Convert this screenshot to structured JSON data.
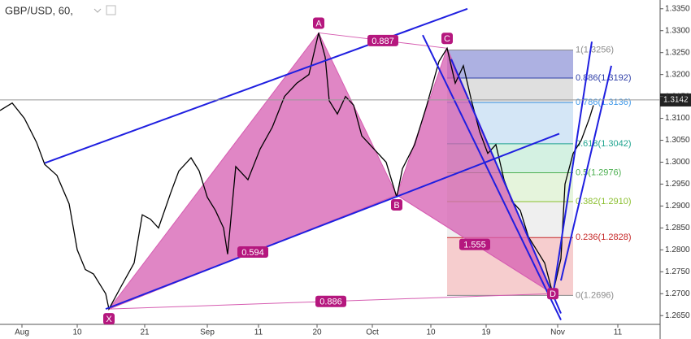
{
  "chart_data": {
    "type": "line",
    "title": "GBP/USD, 60,",
    "xlim": [
      0,
      81.2
    ],
    "ylim": [
      1.263,
      1.337
    ],
    "xticks": [
      {
        "value": 2.7,
        "label": "Aug"
      },
      {
        "value": 9.5,
        "label": "10"
      },
      {
        "value": 17.8,
        "label": "21"
      },
      {
        "value": 25.5,
        "label": "Sep"
      },
      {
        "value": 31.8,
        "label": "11"
      },
      {
        "value": 39,
        "label": "20"
      },
      {
        "value": 45.8,
        "label": "Oct"
      },
      {
        "value": 53,
        "label": "10"
      },
      {
        "value": 59.8,
        "label": "19"
      },
      {
        "value": 68.6,
        "label": "Nov"
      },
      {
        "value": 76,
        "label": "11"
      }
    ],
    "yticks": [
      {
        "value": 1.265,
        "label": "1.2650"
      },
      {
        "value": 1.27,
        "label": "1.2700"
      },
      {
        "value": 1.275,
        "label": "1.2750"
      },
      {
        "value": 1.28,
        "label": "1.2800"
      },
      {
        "value": 1.285,
        "label": "1.2850"
      },
      {
        "value": 1.29,
        "label": "1.2900"
      },
      {
        "value": 1.295,
        "label": "1.2950"
      },
      {
        "value": 1.3,
        "label": "1.3000"
      },
      {
        "value": 1.305,
        "label": "1.3050"
      },
      {
        "value": 1.31,
        "label": "1.3100"
      },
      {
        "value": 1.315,
        "label": "1.3150"
      },
      {
        "value": 1.32,
        "label": "1.3200"
      },
      {
        "value": 1.325,
        "label": "1.3250"
      },
      {
        "value": 1.33,
        "label": "1.3300"
      },
      {
        "value": 1.335,
        "label": "1.3350"
      }
    ],
    "x": [
      0,
      1.5,
      3,
      4.5,
      5.5,
      7,
      8.5,
      9.5,
      10.5,
      11.5,
      13,
      13.4,
      15,
      16.5,
      17.5,
      18.5,
      19.5,
      21,
      22,
      23.5,
      24.5,
      25.5,
      26.5,
      27.5,
      28,
      29,
      30.5,
      32,
      33.5,
      35,
      36.5,
      38,
      39.2,
      40,
      40.5,
      41.5,
      42.5,
      43.5,
      44.5,
      46,
      47.5,
      48.8,
      49.5,
      51,
      52.5,
      54,
      55,
      56,
      57,
      58,
      59,
      60,
      61,
      62,
      63,
      64,
      65,
      66,
      67,
      68,
      69,
      69.5,
      70.5,
      71.5,
      72.5,
      73
    ],
    "values": [
      1.3118,
      1.3135,
      1.31,
      1.3045,
      1.2995,
      1.297,
      1.2905,
      1.28,
      1.2755,
      1.2745,
      1.27,
      1.2665,
      1.272,
      1.277,
      1.288,
      1.287,
      1.285,
      1.293,
      1.298,
      1.301,
      1.298,
      1.292,
      1.289,
      1.285,
      1.279,
      1.299,
      1.296,
      1.303,
      1.308,
      1.315,
      1.318,
      1.32,
      1.3295,
      1.324,
      1.314,
      1.311,
      1.315,
      1.313,
      1.306,
      1.303,
      1.3,
      1.292,
      1.2985,
      1.304,
      1.313,
      1.323,
      1.326,
      1.318,
      1.322,
      1.314,
      1.307,
      1.302,
      1.304,
      1.296,
      1.291,
      1.289,
      1.283,
      1.28,
      1.277,
      1.27,
      1.278,
      1.295,
      1.302,
      1.305,
      1.31,
      1.313
    ],
    "color": "#000000",
    "last": 1.3142,
    "pattern": {
      "color": "#d65db1",
      "label_color": "#b5177e",
      "points": [
        {
          "label": "X",
          "x": 13.4,
          "y": 1.2665
        },
        {
          "label": "A",
          "x": 39.2,
          "y": 1.3295
        },
        {
          "label": "B",
          "x": 48.8,
          "y": 1.2925
        },
        {
          "label": "C",
          "x": 55,
          "y": 1.326
        },
        {
          "label": "D",
          "x": 68,
          "y": 1.27
        }
      ],
      "ratios": [
        {
          "label": "0.887",
          "legs": [
            1,
            3
          ]
        },
        {
          "label": "0.594",
          "legs": [
            0,
            2
          ]
        },
        {
          "label": "0.886",
          "legs": [
            0,
            4
          ]
        },
        {
          "label": "1.555",
          "legs": [
            2,
            4
          ]
        }
      ]
    },
    "fib": {
      "x": [
        55,
        70.5
      ],
      "levels": [
        {
          "value": 1.3256,
          "label": "1(1.3256)",
          "color": "#8c8c8c",
          "fill": "#9fa3dd"
        },
        {
          "value": 1.3192,
          "label": "0.886(1.3192)",
          "color": "#2f3fa8",
          "fill": "#d9d9d9"
        },
        {
          "value": 1.3136,
          "label": "0.786(1.3136)",
          "color": "#3d97e8",
          "fill": "#cde2f4"
        },
        {
          "value": 1.3042,
          "label": "0.618(1.3042)",
          "color": "#1ea48f",
          "fill": "#cdeedd"
        },
        {
          "value": 1.2976,
          "label": "0.5(1.2976)",
          "color": "#4caf50",
          "fill": "#e0f2d6"
        },
        {
          "value": 1.291,
          "label": "0.382(1.2910)",
          "color": "#8bbf2f",
          "fill": "#ececec"
        },
        {
          "value": 1.2828,
          "label": "0.236(1.2828)",
          "color": "#c62828",
          "fill": "#f4c4c6"
        },
        {
          "value": 1.2696,
          "label": "0(1.2696)",
          "color": "#8c8c8c"
        }
      ]
    },
    "trendline_color": "#1f1fe0",
    "trendlines": [
      {
        "x": [
          5.5,
          57.5
        ],
        "y": [
          1.2998,
          1.335
        ]
      },
      {
        "x": [
          13,
          68.8
        ],
        "y": [
          1.2665,
          1.3065
        ]
      },
      {
        "x": [
          52,
          69
        ],
        "y": [
          1.329,
          1.264
        ]
      },
      {
        "x": [
          55.5,
          69
        ],
        "y": [
          1.3235,
          1.2655
        ]
      },
      {
        "x": [
          68,
          72.8
        ],
        "y": [
          1.2695,
          1.3275
        ]
      },
      {
        "x": [
          69,
          75.2
        ],
        "y": [
          1.273,
          1.322
        ]
      }
    ]
  }
}
